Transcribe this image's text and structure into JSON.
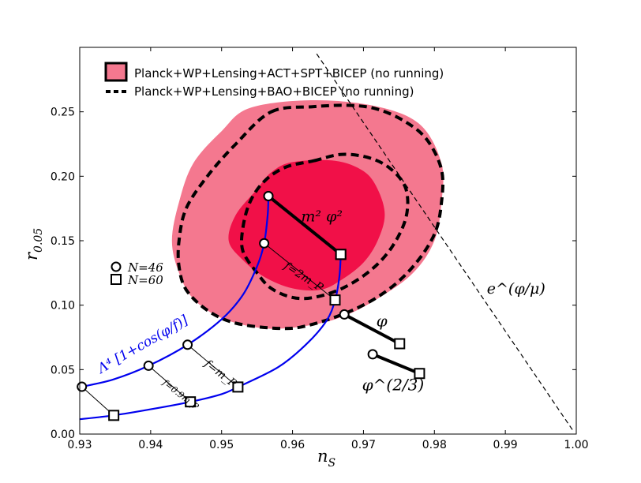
{
  "chart_data": {
    "type": "scatter",
    "title": "",
    "xlabel": "n",
    "xlabel_sub": "S",
    "ylabel": "r",
    "ylabel_sub": "0.05",
    "xlim": [
      0.93,
      1.0
    ],
    "ylim": [
      0.0,
      0.3
    ],
    "xticks": [
      0.93,
      0.94,
      0.95,
      0.96,
      0.97,
      0.98,
      0.99,
      1.0
    ],
    "xtick_labels": [
      "0.93",
      "0.94",
      "0.95",
      "0.96",
      "0.97",
      "0.98",
      "0.99",
      "1.00"
    ],
    "yticks": [
      0.0,
      0.05,
      0.1,
      0.15,
      0.2,
      0.25
    ],
    "ytick_labels": [
      "0.00",
      "0.05",
      "0.10",
      "0.15",
      "0.20",
      "0.25"
    ],
    "legend": {
      "placement": "top-left",
      "entries": [
        {
          "label": "Planck+WP+Lensing+ACT+SPT+BICEP (no running)",
          "style": "filled"
        },
        {
          "label": "Planck+WP+Lensing+BAO+BICEP (no running)",
          "style": "dashed"
        }
      ]
    },
    "marker_legend": [
      {
        "label": "N=46",
        "marker": "circle"
      },
      {
        "label": "N=60",
        "marker": "square"
      }
    ],
    "regions": {
      "contour_95": [
        [
          0.954,
          0.253
        ],
        [
          0.963,
          0.259
        ],
        [
          0.972,
          0.254
        ],
        [
          0.978,
          0.24
        ],
        [
          0.981,
          0.21
        ],
        [
          0.981,
          0.18
        ],
        [
          0.98,
          0.15
        ],
        [
          0.977,
          0.125
        ],
        [
          0.972,
          0.105
        ],
        [
          0.967,
          0.091
        ],
        [
          0.962,
          0.084
        ],
        [
          0.956,
          0.082
        ],
        [
          0.95,
          0.09
        ],
        [
          0.946,
          0.105
        ],
        [
          0.944,
          0.125
        ],
        [
          0.943,
          0.15
        ],
        [
          0.944,
          0.18
        ],
        [
          0.946,
          0.21
        ],
        [
          0.95,
          0.235
        ]
      ],
      "contour_68": [
        [
          0.96,
          0.211
        ],
        [
          0.966,
          0.212
        ],
        [
          0.97,
          0.204
        ],
        [
          0.972,
          0.19
        ],
        [
          0.973,
          0.17
        ],
        [
          0.972,
          0.15
        ],
        [
          0.97,
          0.133
        ],
        [
          0.967,
          0.12
        ],
        [
          0.964,
          0.112
        ],
        [
          0.96,
          0.113
        ],
        [
          0.956,
          0.122
        ],
        [
          0.953,
          0.135
        ],
        [
          0.951,
          0.15
        ],
        [
          0.952,
          0.17
        ],
        [
          0.955,
          0.19
        ],
        [
          0.957,
          0.203
        ]
      ],
      "dashed_95": [
        [
          0.957,
          0.25
        ],
        [
          0.963,
          0.254
        ],
        [
          0.968,
          0.255
        ],
        [
          0.972,
          0.252
        ],
        [
          0.976,
          0.242
        ],
        [
          0.979,
          0.228
        ],
        [
          0.981,
          0.205
        ],
        [
          0.981,
          0.18
        ],
        [
          0.98,
          0.155
        ],
        [
          0.977,
          0.13
        ],
        [
          0.973,
          0.11
        ],
        [
          0.968,
          0.095
        ],
        [
          0.962,
          0.084
        ],
        [
          0.958,
          0.082
        ],
        [
          0.952,
          0.086
        ],
        [
          0.948,
          0.096
        ],
        [
          0.945,
          0.112
        ],
        [
          0.944,
          0.13
        ],
        [
          0.944,
          0.15
        ],
        [
          0.945,
          0.175
        ],
        [
          0.948,
          0.2
        ],
        [
          0.952,
          0.225
        ]
      ],
      "dashed_68": [
        [
          0.963,
          0.212
        ],
        [
          0.967,
          0.217
        ],
        [
          0.971,
          0.214
        ],
        [
          0.974,
          0.205
        ],
        [
          0.976,
          0.19
        ],
        [
          0.976,
          0.168
        ],
        [
          0.974,
          0.145
        ],
        [
          0.971,
          0.127
        ],
        [
          0.967,
          0.113
        ],
        [
          0.963,
          0.106
        ],
        [
          0.96,
          0.106
        ],
        [
          0.957,
          0.113
        ],
        [
          0.955,
          0.125
        ],
        [
          0.953,
          0.142
        ],
        [
          0.953,
          0.16
        ],
        [
          0.954,
          0.18
        ],
        [
          0.956,
          0.196
        ],
        [
          0.959,
          0.207
        ]
      ]
    },
    "series": [
      {
        "name": "m^2 phi^2",
        "label": "m² φ²",
        "line": [
          [
            0.9566,
            0.1846
          ],
          [
            0.9668,
            0.1394
          ]
        ],
        "n46": [
          0.9566,
          0.1846
        ],
        "n60": [
          0.9668,
          0.1394
        ]
      },
      {
        "name": "phi",
        "label": "φ",
        "line": [
          [
            0.9673,
            0.0928
          ],
          [
            0.9751,
            0.0701
          ]
        ],
        "n46": [
          0.9673,
          0.0928
        ],
        "n60": [
          0.9751,
          0.0701
        ]
      },
      {
        "name": "phi^(2/3)",
        "label": "φ^(2/3)",
        "line": [
          [
            0.9713,
            0.0619
          ],
          [
            0.9779,
            0.047
          ]
        ],
        "n46": [
          0.9713,
          0.0619
        ],
        "n60": [
          0.9779,
          0.047
        ]
      },
      {
        "name": "natural inflation N=46",
        "label": "Λ⁴ [1+cos(φ/f)]",
        "color": "#0000ee",
        "curve": [
          [
            0.9303,
            0.0367
          ],
          [
            0.9347,
            0.0423
          ],
          [
            0.9397,
            0.053
          ],
          [
            0.9452,
            0.0693
          ],
          [
            0.95,
            0.089
          ],
          [
            0.953,
            0.108
          ],
          [
            0.955,
            0.13
          ],
          [
            0.956,
            0.148
          ],
          [
            0.9565,
            0.17
          ],
          [
            0.9566,
            0.1846
          ]
        ],
        "points": [
          [
            0.9303,
            0.0367
          ],
          [
            0.9397,
            0.053
          ],
          [
            0.9452,
            0.0693
          ],
          [
            0.956,
            0.148
          ],
          [
            0.9566,
            0.1846
          ]
        ]
      },
      {
        "name": "natural inflation N=60",
        "color": "#0000ee",
        "curve": [
          [
            0.93,
            0.0115
          ],
          [
            0.9348,
            0.0145
          ],
          [
            0.94,
            0.0192
          ],
          [
            0.9456,
            0.025
          ],
          [
            0.95,
            0.031
          ],
          [
            0.9523,
            0.0365
          ],
          [
            0.958,
            0.052
          ],
          [
            0.962,
            0.07
          ],
          [
            0.9648,
            0.088
          ],
          [
            0.966,
            0.104
          ],
          [
            0.9666,
            0.122
          ],
          [
            0.9668,
            0.1394
          ]
        ],
        "points": [
          [
            0.9348,
            0.0145
          ],
          [
            0.9456,
            0.025
          ],
          [
            0.9523,
            0.0365
          ],
          [
            0.966,
            0.104
          ],
          [
            0.9668,
            0.1394
          ]
        ]
      }
    ],
    "connectors": [
      {
        "label": "f=0.9m_P",
        "from": [
          0.9397,
          0.053
        ],
        "to": [
          0.9456,
          0.025
        ]
      },
      {
        "label": "f=m_P",
        "from": [
          0.9452,
          0.0693
        ],
        "to": [
          0.9523,
          0.0365
        ]
      },
      {
        "label": "f=2m_P",
        "from": [
          0.956,
          0.148
        ],
        "to": [
          0.966,
          0.104
        ]
      },
      {
        "label": "",
        "from": [
          0.9303,
          0.0367
        ],
        "to": [
          0.9348,
          0.0145
        ]
      }
    ],
    "dashed_line": {
      "label": "e^(φ/μ)",
      "from": [
        0.9634,
        0.295
      ],
      "to": [
        0.9995,
        0.003
      ]
    },
    "annotations": [
      {
        "text": "m² φ²",
        "x": 0.9612,
        "y": 0.165
      },
      {
        "text": "φ",
        "x": 0.9718,
        "y": 0.0835
      },
      {
        "text": "φ^(2/3)",
        "x": 0.9698,
        "y": 0.034
      },
      {
        "text": "e^(φ/μ)",
        "x": 0.9874,
        "y": 0.109
      },
      {
        "text": "Λ⁴ [1+cos(φ/f)]",
        "x": 0.933,
        "y": 0.047
      },
      {
        "text": "f=2m_P",
        "x": 0.9587,
        "y": 0.129
      },
      {
        "text": "f=m_P",
        "x": 0.9475,
        "y": 0.0536
      },
      {
        "text": "f=0.9m_P",
        "x": 0.9416,
        "y": 0.039
      }
    ],
    "colors": {
      "outer": "#f4788f",
      "inner": "#f11048",
      "blue": "#0000ee",
      "black": "#000000"
    }
  }
}
